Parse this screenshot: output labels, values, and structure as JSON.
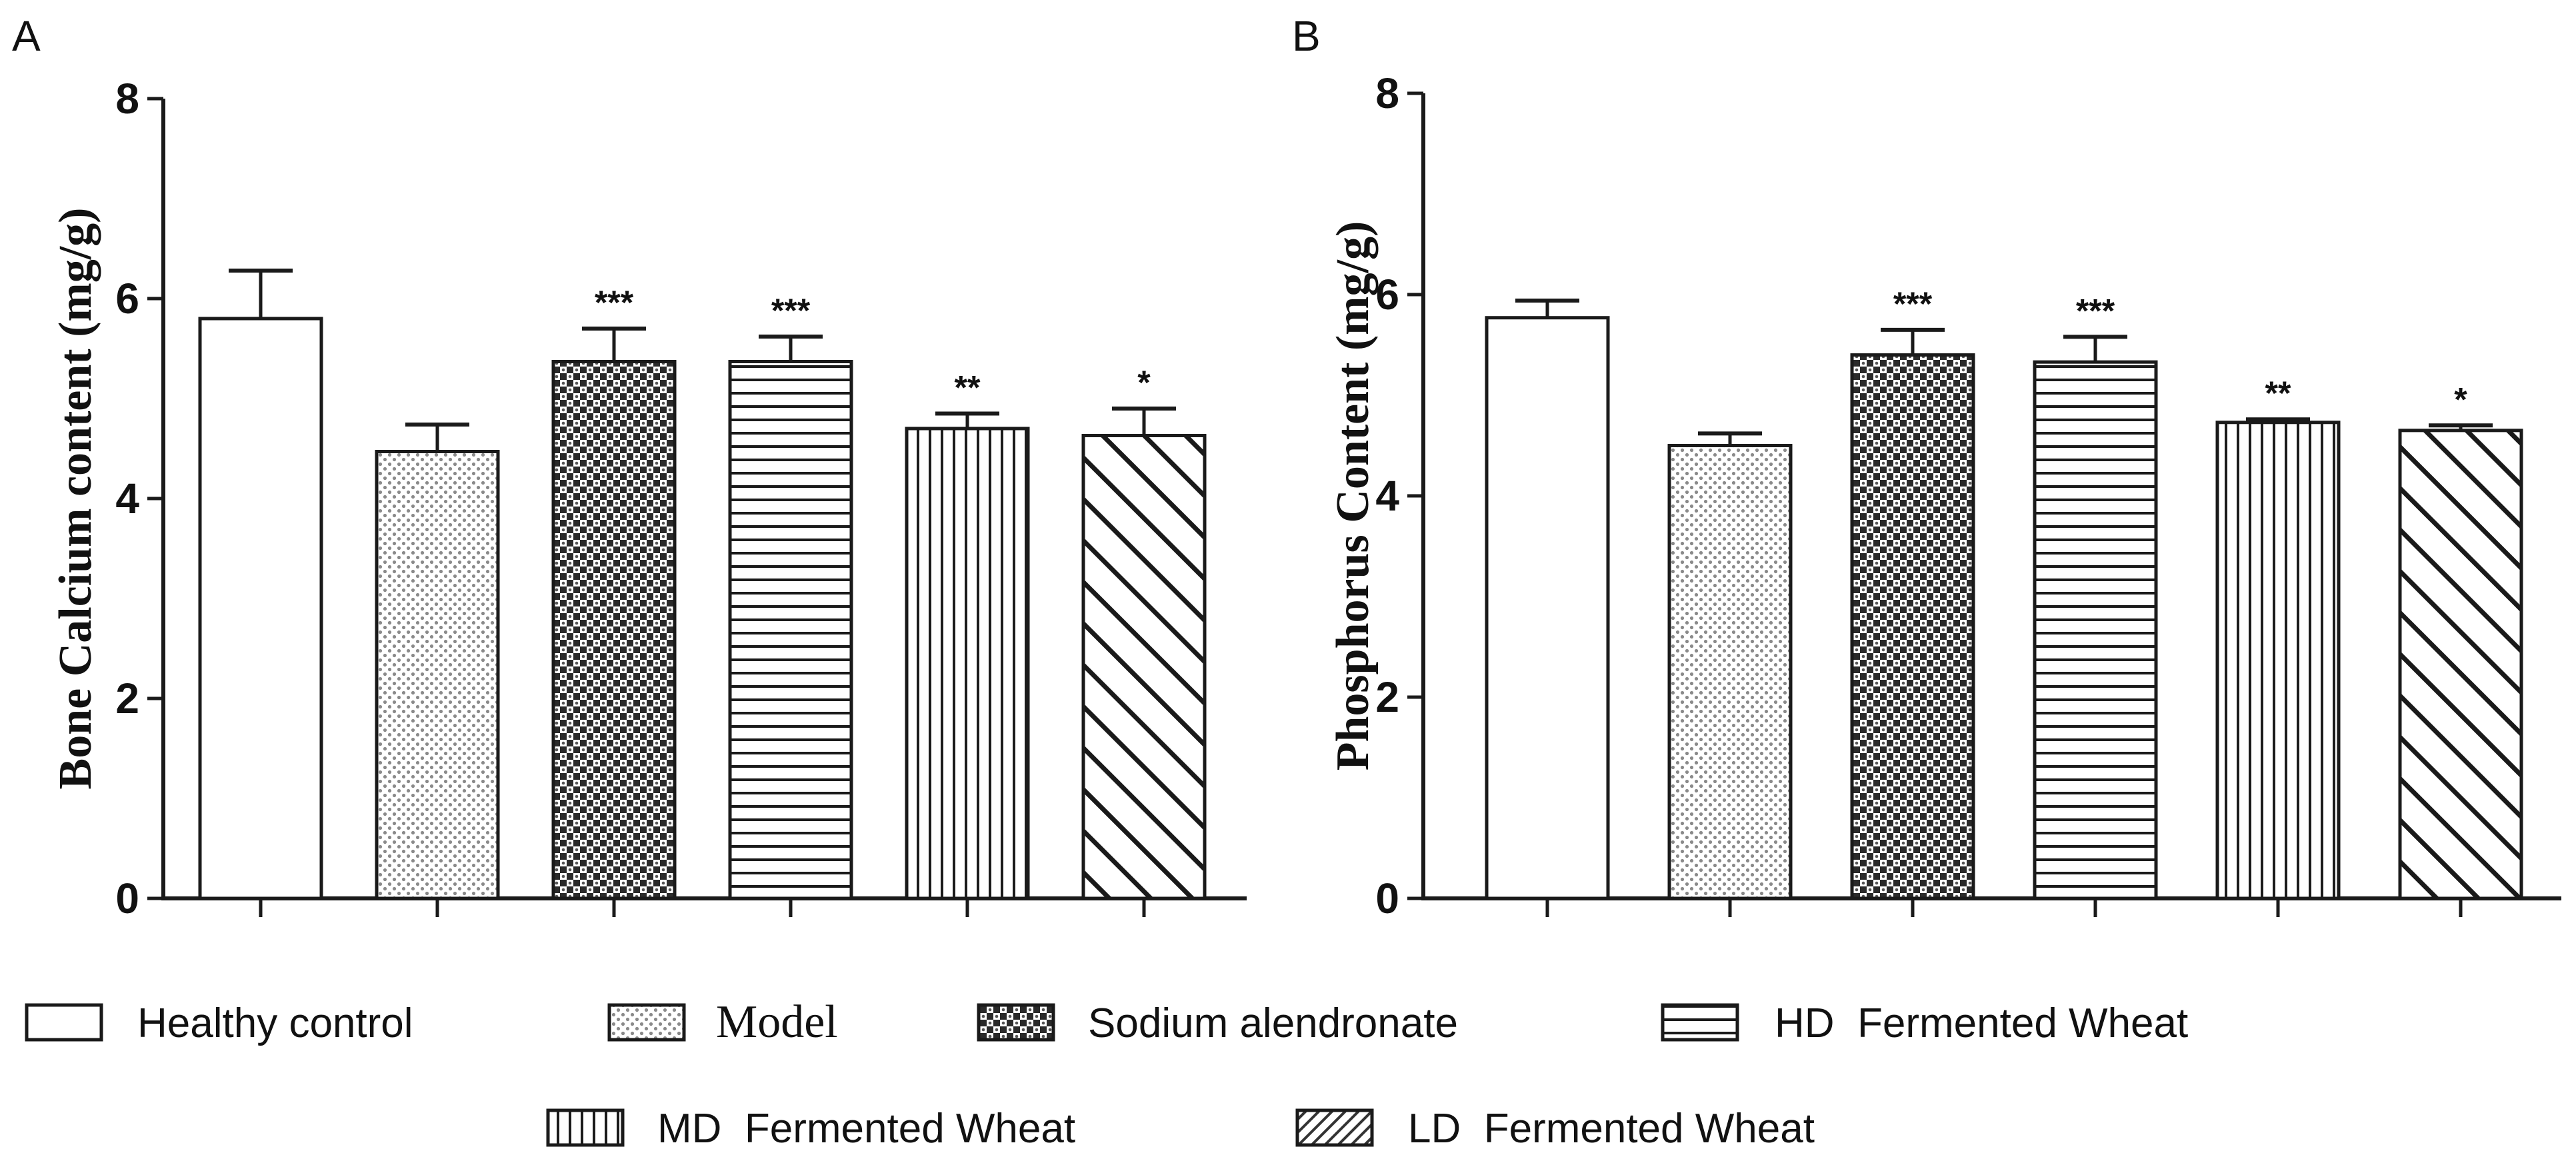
{
  "chart_data": [
    {
      "panel": "A",
      "type": "bar",
      "ylabel": "Bone Calcium content (mg/g)",
      "xlabel": "",
      "ylim": [
        0,
        8
      ],
      "yticks": [
        "0",
        "2",
        "4",
        "6",
        "8"
      ],
      "categories": [
        "Healthy control",
        "Model",
        "Sodium alendronate",
        "HD  Fermented Wheat",
        "MD  Fermented Wheat",
        "LD  Fermented Wheat"
      ],
      "values": [
        5.8,
        4.47,
        5.37,
        5.37,
        4.7,
        4.63
      ],
      "errors": [
        0.48,
        0.27,
        0.33,
        0.25,
        0.15,
        0.27
      ],
      "significance": [
        "",
        "",
        "***",
        "***",
        "**",
        "*"
      ]
    },
    {
      "panel": "B",
      "type": "bar",
      "ylabel": "Phosphorus Content (mg/g)",
      "xlabel": "",
      "ylim": [
        0,
        8
      ],
      "yticks": [
        "0",
        "2",
        "4",
        "6",
        "8"
      ],
      "categories": [
        "Healthy control",
        "Model",
        "Sodium alendronate",
        "HD  Fermented Wheat",
        "MD  Fermented Wheat",
        "LD  Fermented Wheat"
      ],
      "values": [
        5.77,
        4.5,
        5.4,
        5.33,
        4.73,
        4.65
      ],
      "errors": [
        0.17,
        0.12,
        0.25,
        0.25,
        0.03,
        0.05
      ],
      "significance": [
        "",
        "",
        "***",
        "***",
        "**",
        "*"
      ]
    }
  ],
  "legend": {
    "items": [
      {
        "label": "Healthy control",
        "pattern": "none"
      },
      {
        "label": "Model",
        "pattern": "dots"
      },
      {
        "label": "Sodium alendronate",
        "pattern": "checker"
      },
      {
        "label": "HD  Fermented Wheat",
        "pattern": "hlines"
      },
      {
        "label": "MD  Fermented Wheat",
        "pattern": "vlines"
      },
      {
        "label": "LD  Fermented Wheat",
        "pattern": "diag"
      }
    ]
  }
}
